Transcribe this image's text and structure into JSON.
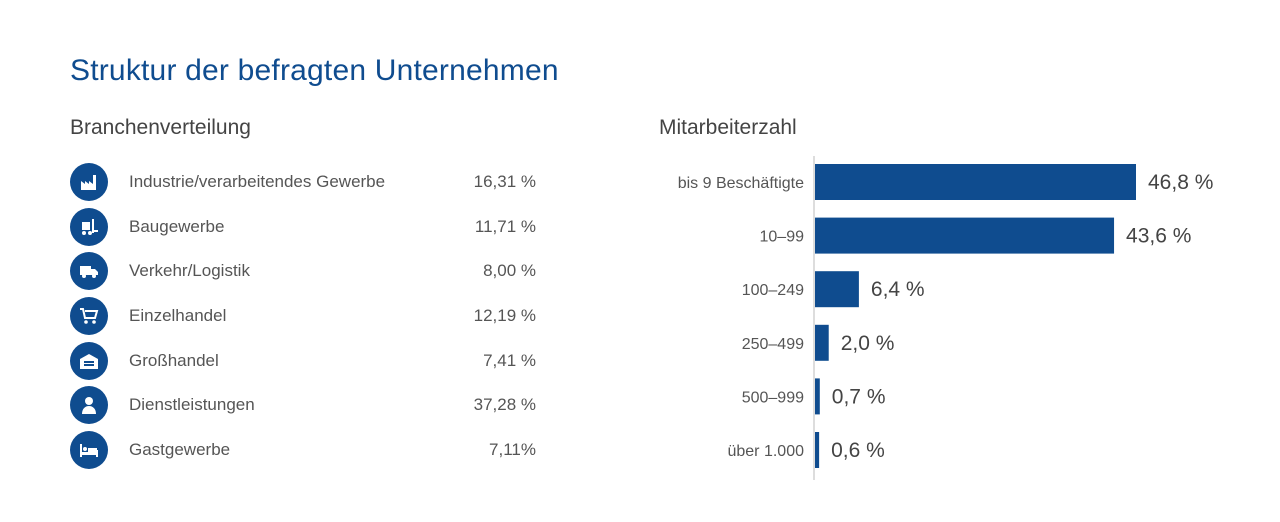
{
  "title": "Struktur der befragten Unternehmen",
  "branchen": {
    "heading": "Branchenverteilung",
    "items": [
      {
        "label": "Industrie/verarbeitendes Gewerbe",
        "value": "16,31 %",
        "icon": "factory-icon"
      },
      {
        "label": "Baugewerbe",
        "value": "11,71 %",
        "icon": "forklift-icon"
      },
      {
        "label": "Verkehr/Logistik",
        "value": "8,00 %",
        "icon": "truck-icon"
      },
      {
        "label": "Einzelhandel",
        "value": "12,19 %",
        "icon": "shopping-cart-icon"
      },
      {
        "label": "Großhandel",
        "value": "7,41 %",
        "icon": "warehouse-icon"
      },
      {
        "label": "Dienstleistungen",
        "value": "37,28 %",
        "icon": "person-icon"
      },
      {
        "label": "Gastgewerbe",
        "value": "7,11%",
        "icon": "bed-icon"
      }
    ]
  },
  "colors": {
    "accent": "#0f4c8f",
    "text": "#555555"
  },
  "chart_data": {
    "type": "bar",
    "orientation": "horizontal",
    "title": "Mitarbeiterzahl",
    "categories": [
      "bis 9 Beschäftigte",
      "10–99",
      "100–249",
      "250–499",
      "500–999",
      "über 1.000"
    ],
    "values": [
      46.8,
      43.6,
      6.4,
      2.0,
      0.7,
      0.6
    ],
    "value_labels": [
      "46,8 %",
      "43,6 %",
      "6,4 %",
      "2,0 %",
      "0,7 %",
      "0,6 %"
    ],
    "xlim": [
      0,
      46.8
    ],
    "grid": false,
    "color": "#0f4c8f"
  }
}
